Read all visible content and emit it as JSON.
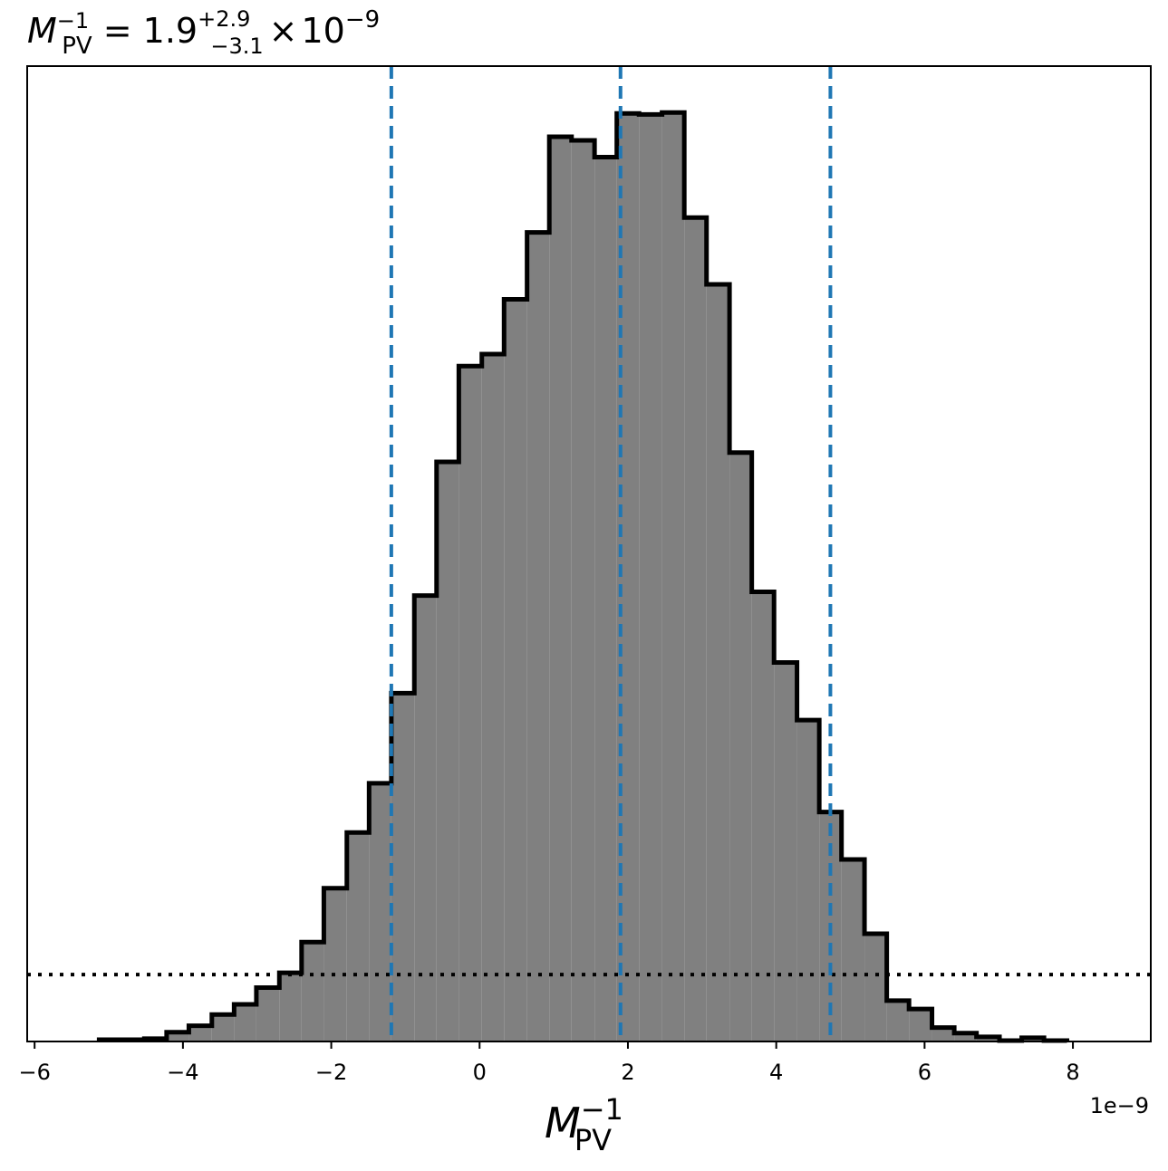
{
  "chart_data": {
    "type": "histogram",
    "title": {
      "symbol": "M",
      "subscript": "PV",
      "superscript": "−1",
      "equals": " = ",
      "median": "1.9",
      "upper": "+2.9",
      "lower": "−3.1",
      "times": "×",
      "power_base": "10",
      "power_exp": "−9"
    },
    "xlabel": {
      "symbol": "M",
      "subscript": "PV",
      "superscript": "−1"
    },
    "x_offset_label": "1e−9",
    "xlim": [
      -6.1,
      9.05
    ],
    "ylim": [
      0,
      1.05
    ],
    "xticks": [
      {
        "value": -6,
        "label": "−6"
      },
      {
        "value": -4,
        "label": "−4"
      },
      {
        "value": -2,
        "label": "−2"
      },
      {
        "value": 0,
        "label": "0"
      },
      {
        "value": 2,
        "label": "2"
      },
      {
        "value": 4,
        "label": "4"
      },
      {
        "value": 6,
        "label": "6"
      },
      {
        "value": 8,
        "label": "8"
      }
    ],
    "bin_edges": [
      -5.13,
      -4.83,
      -4.52,
      -4.22,
      -3.92,
      -3.61,
      -3.31,
      -3.01,
      -2.7,
      -2.4,
      -2.1,
      -1.79,
      -1.49,
      -1.19,
      -0.88,
      -0.58,
      -0.28,
      0.03,
      0.33,
      0.64,
      0.94,
      1.24,
      1.55,
      1.85,
      2.15,
      2.46,
      2.76,
      3.06,
      3.37,
      3.67,
      3.97,
      4.28,
      4.58,
      4.88,
      5.19,
      5.49,
      5.79,
      6.1,
      6.4,
      6.7,
      7.01,
      7.31,
      7.61,
      7.92
    ],
    "counts": [
      0.002,
      0.002,
      0.003,
      0.01,
      0.017,
      0.029,
      0.04,
      0.058,
      0.074,
      0.107,
      0.165,
      0.225,
      0.278,
      0.375,
      0.48,
      0.624,
      0.727,
      0.74,
      0.799,
      0.871,
      0.974,
      0.97,
      0.952,
      0.999,
      0.998,
      1.0,
      0.887,
      0.815,
      0.634,
      0.484,
      0.408,
      0.346,
      0.247,
      0.196,
      0.116,
      0.044,
      0.035,
      0.015,
      0.009,
      0.005,
      0.001,
      0.004,
      0.001
    ],
    "fill_color": "#808080",
    "edge_color": "#000000",
    "vlines": {
      "values": [
        -1.19,
        1.9,
        4.73
      ],
      "style": "dashed",
      "color": "#1f77b4"
    },
    "hline": {
      "value": 0.072,
      "style": "dotted",
      "color": "#000000"
    },
    "grid": false
  }
}
